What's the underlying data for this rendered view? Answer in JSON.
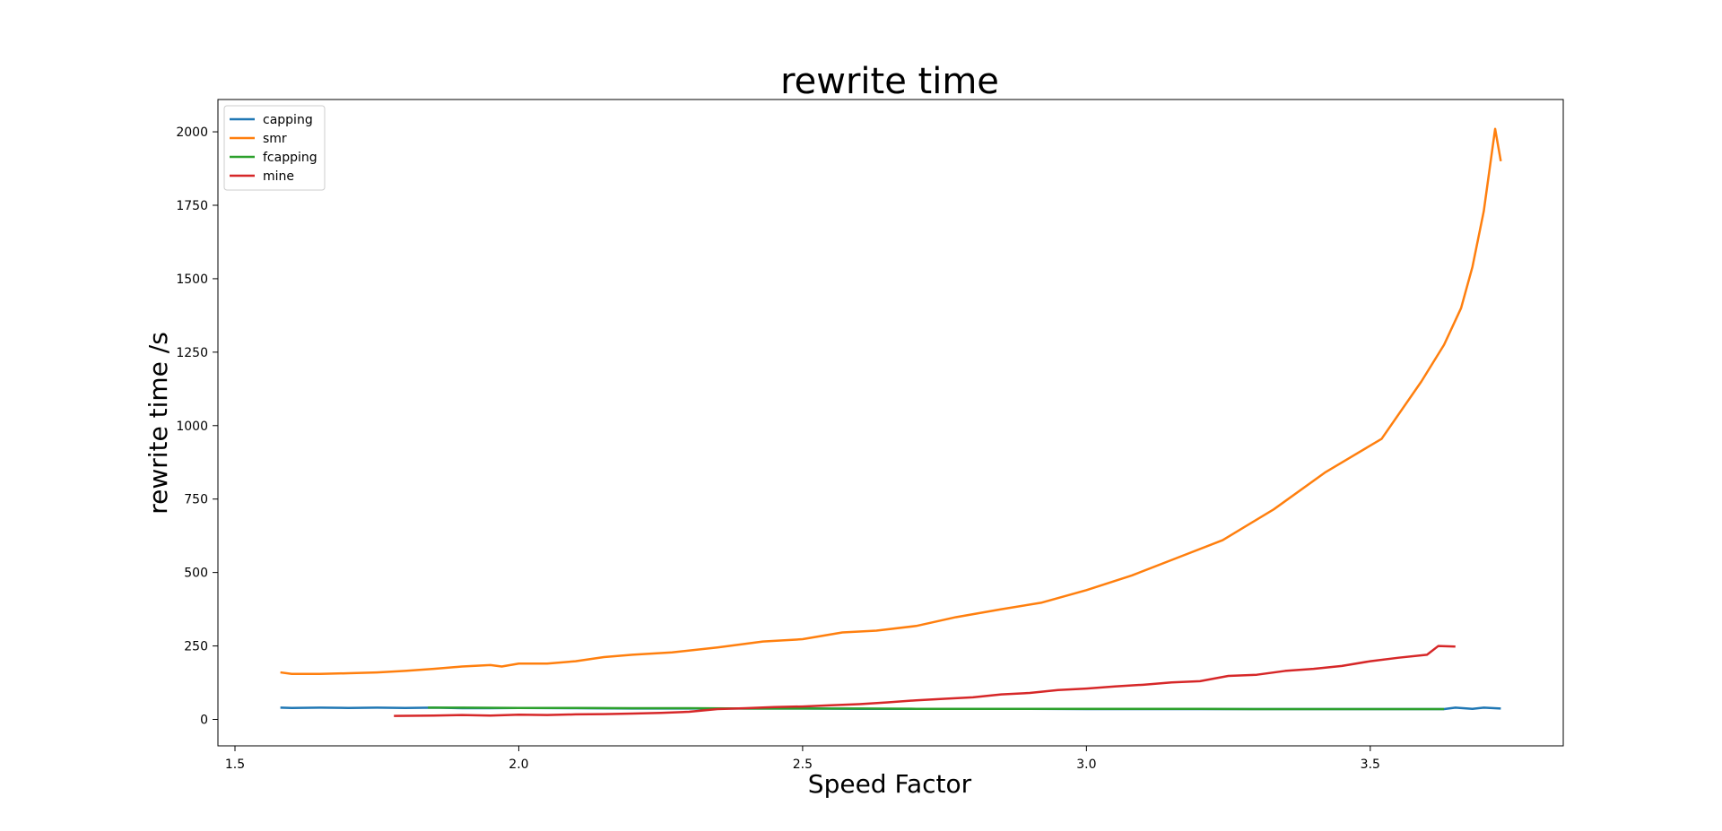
{
  "chart_data": {
    "type": "line",
    "title": "rewrite time",
    "xlabel": "Speed Factor",
    "ylabel": "rewrite time /s",
    "xlim": [
      1.47,
      3.84
    ],
    "ylim": [
      -90,
      2110
    ],
    "xticks": [
      1.5,
      2.0,
      2.5,
      3.0,
      3.5
    ],
    "xtick_labels": [
      "1.5",
      "2.0",
      "2.5",
      "3.0",
      "3.5"
    ],
    "yticks": [
      0,
      250,
      500,
      750,
      1000,
      1250,
      1500,
      1750,
      2000
    ],
    "ytick_labels": [
      "0",
      "250",
      "500",
      "750",
      "1000",
      "1250",
      "1500",
      "1750",
      "2000"
    ],
    "grid": false,
    "legend_position": "top-left",
    "series": [
      {
        "name": "capping",
        "color": "#1f77b4",
        "x": [
          1.58,
          1.6,
          1.65,
          1.7,
          1.75,
          1.8,
          1.85,
          1.9,
          1.95,
          2.0,
          2.1,
          2.2,
          2.3,
          2.4,
          2.5,
          2.6,
          2.7,
          2.8,
          2.9,
          3.0,
          3.1,
          3.2,
          3.3,
          3.4,
          3.5,
          3.6,
          3.63,
          3.65,
          3.68,
          3.7,
          3.73
        ],
        "y": [
          40,
          39,
          40,
          39,
          40,
          39,
          40,
          38,
          38,
          39,
          38,
          37,
          37,
          37,
          37,
          36,
          36,
          36,
          36,
          35,
          35,
          35,
          35,
          35,
          35,
          35,
          35,
          40,
          36,
          40,
          37
        ]
      },
      {
        "name": "smr",
        "color": "#ff7f0e",
        "x": [
          1.58,
          1.6,
          1.65,
          1.7,
          1.75,
          1.8,
          1.85,
          1.9,
          1.95,
          1.97,
          2.0,
          2.05,
          2.1,
          2.15,
          2.2,
          2.27,
          2.35,
          2.43,
          2.5,
          2.57,
          2.63,
          2.7,
          2.77,
          2.85,
          2.92,
          3.0,
          3.08,
          3.16,
          3.24,
          3.33,
          3.42,
          3.52,
          3.59,
          3.63,
          3.66,
          3.68,
          3.7,
          3.72,
          3.73
        ],
        "y": [
          160,
          155,
          155,
          157,
          160,
          165,
          172,
          180,
          185,
          180,
          190,
          190,
          198,
          212,
          220,
          228,
          245,
          265,
          273,
          296,
          302,
          318,
          348,
          375,
          397,
          440,
          490,
          550,
          610,
          715,
          840,
          955,
          1150,
          1275,
          1400,
          1540,
          1730,
          2010,
          1900
        ]
      },
      {
        "name": "fcapping",
        "color": "#2ca02c",
        "x": [
          1.84,
          1.9,
          2.0,
          2.1,
          2.2,
          2.3,
          2.4,
          2.5,
          2.6,
          2.7,
          2.8,
          2.9,
          3.0,
          3.1,
          3.2,
          3.3,
          3.4,
          3.5,
          3.6,
          3.63
        ],
        "y": [
          40,
          40,
          39,
          39,
          38,
          38,
          37,
          37,
          37,
          36,
          36,
          36,
          36,
          36,
          36,
          35,
          35,
          35,
          35,
          35
        ]
      },
      {
        "name": "mine",
        "color": "#d62728",
        "x": [
          1.78,
          1.85,
          1.9,
          1.95,
          2.0,
          2.05,
          2.1,
          2.15,
          2.2,
          2.25,
          2.3,
          2.35,
          2.4,
          2.45,
          2.5,
          2.55,
          2.6,
          2.65,
          2.7,
          2.75,
          2.8,
          2.85,
          2.9,
          2.95,
          3.0,
          3.05,
          3.1,
          3.15,
          3.2,
          3.25,
          3.3,
          3.35,
          3.4,
          3.45,
          3.5,
          3.55,
          3.6,
          3.62,
          3.65
        ],
        "y": [
          12,
          13,
          15,
          13,
          16,
          15,
          17,
          18,
          20,
          22,
          26,
          35,
          38,
          42,
          44,
          48,
          52,
          58,
          65,
          70,
          75,
          85,
          90,
          100,
          105,
          112,
          118,
          126,
          130,
          148,
          152,
          165,
          172,
          182,
          198,
          210,
          220,
          250,
          248
        ]
      }
    ]
  }
}
